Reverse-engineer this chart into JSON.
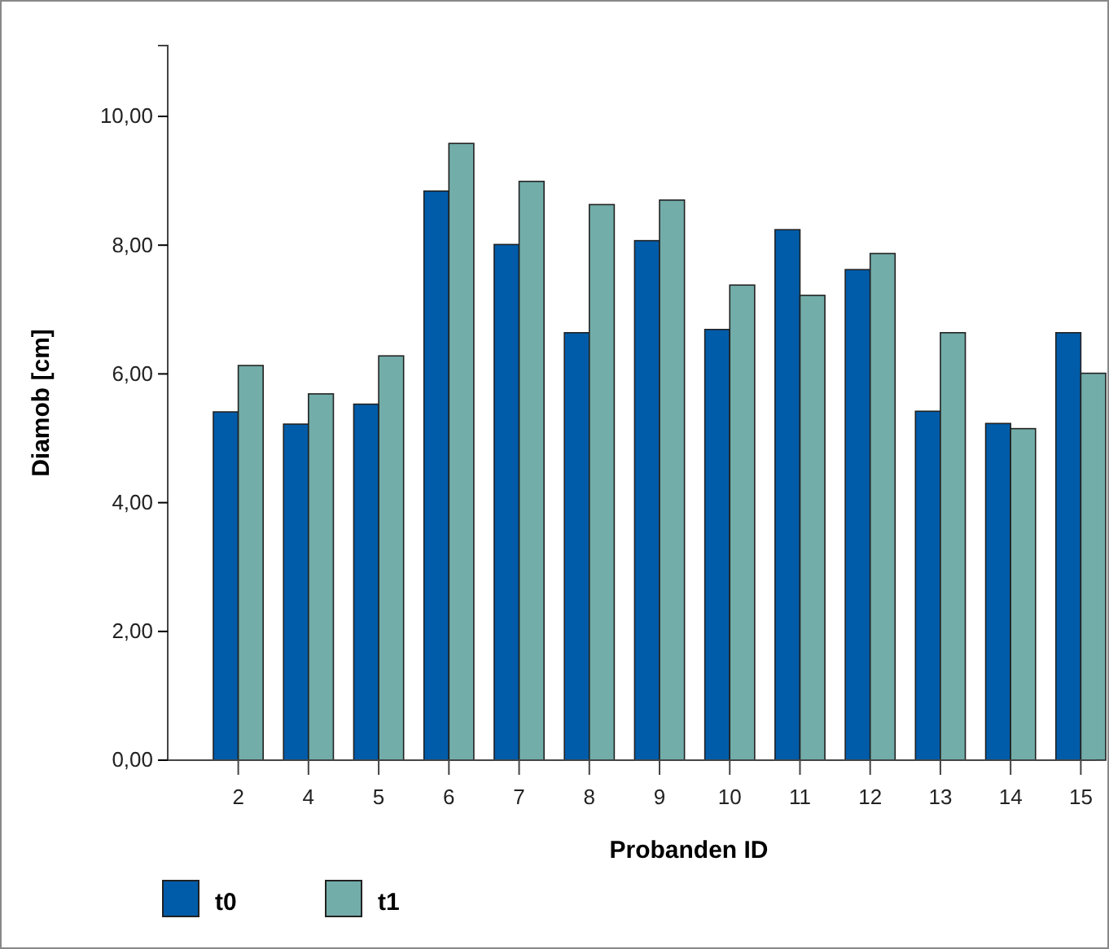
{
  "chart_data": {
    "type": "bar",
    "xlabel": "Probanden ID",
    "ylabel": "Diamob [cm]",
    "categories": [
      "2",
      "4",
      "5",
      "6",
      "7",
      "8",
      "9",
      "10",
      "11",
      "12",
      "13",
      "14",
      "15"
    ],
    "series": [
      {
        "name": "t0",
        "color": "#005ca9",
        "values": [
          5.41,
          5.22,
          5.53,
          8.84,
          8.01,
          6.64,
          8.07,
          6.69,
          8.24,
          7.62,
          5.42,
          5.23,
          6.64
        ]
      },
      {
        "name": "t1",
        "color": "#72ada9",
        "values": [
          6.13,
          5.69,
          6.28,
          9.58,
          8.99,
          8.63,
          8.7,
          7.38,
          7.22,
          7.87,
          6.64,
          5.15,
          6.01
        ]
      }
    ],
    "ylim": [
      0,
      11.1
    ],
    "yticks": [
      {
        "value": 0,
        "label": "0,00"
      },
      {
        "value": 2,
        "label": "2,00"
      },
      {
        "value": 4,
        "label": "4,00"
      },
      {
        "value": 6,
        "label": "6,00"
      },
      {
        "value": 8,
        "label": "8,00"
      },
      {
        "value": 10,
        "label": "10,00"
      }
    ],
    "grid": false,
    "legend": "bottom left"
  }
}
